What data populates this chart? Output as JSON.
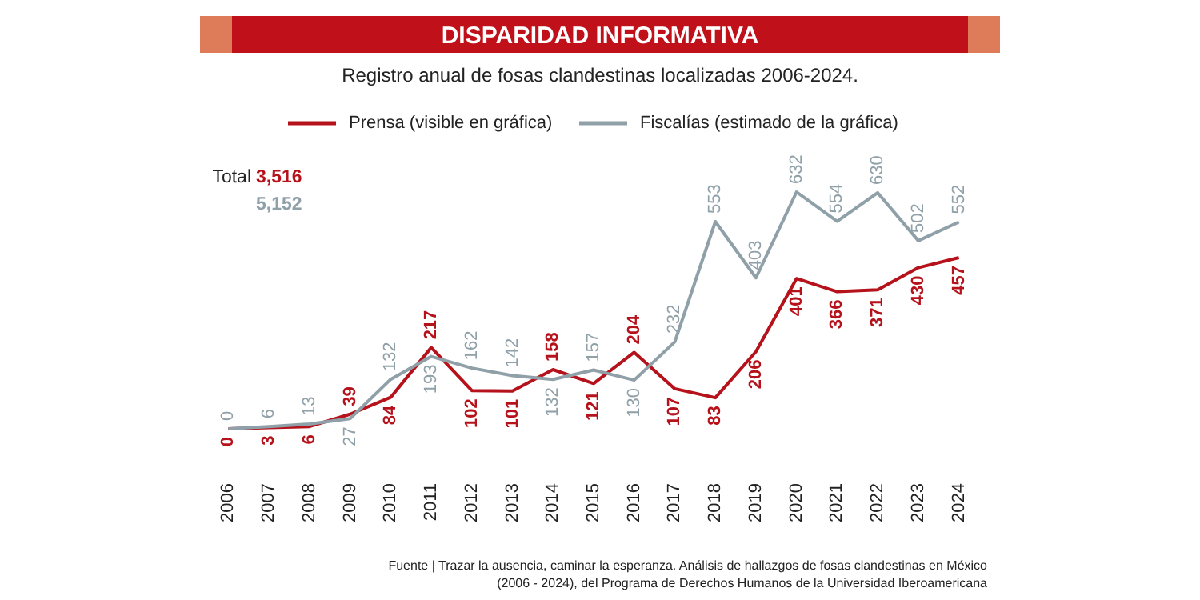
{
  "chart_data": {
    "type": "line",
    "title": "DISPARIDAD INFORMATIVA",
    "subtitle": "Registro anual de fosas clandestinas localizadas 2006-2024.",
    "categories": [
      "2006",
      "2007",
      "2008",
      "2009",
      "2010",
      "2011",
      "2012",
      "2013",
      "2014",
      "2015",
      "2016",
      "2017",
      "2018",
      "2019",
      "2020",
      "2021",
      "2022",
      "2023",
      "2024"
    ],
    "series": [
      {
        "name": "Prensa (visible en gráfica)",
        "color": "#b5121b",
        "values": [
          0,
          3,
          6,
          39,
          84,
          217,
          102,
          101,
          158,
          121,
          204,
          107,
          83,
          206,
          401,
          366,
          371,
          430,
          457
        ]
      },
      {
        "name": "Fiscalías (estimado de la gráfica)",
        "color": "#8fa0a8",
        "values": [
          0,
          6,
          13,
          27,
          132,
          193,
          162,
          142,
          132,
          157,
          130,
          232,
          553,
          403,
          632,
          554,
          630,
          502,
          552
        ]
      }
    ],
    "data_labels": true,
    "legend": "top",
    "marker": "none",
    "line_style": "solid",
    "annotations": [
      "Total",
      "3,516",
      "5,152",
      "Fuente | Trazar la ausencia, caminar la esperanza. Análisis de hallazgos de fosas clandestinas en México",
      "(2006 - 2024), del Programa de Derechos Humanos de la Universidad Iberoamericana"
    ]
  }
}
